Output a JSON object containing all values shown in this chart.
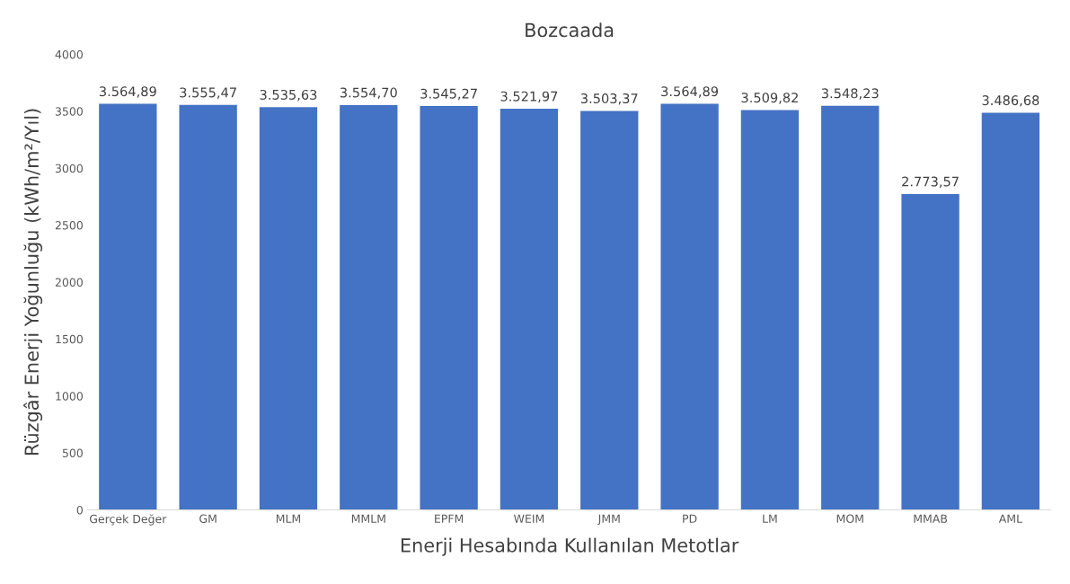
{
  "chart_data": {
    "type": "bar",
    "title": "Bozcaada",
    "xlabel": "Enerji Hesabında Kullanılan Metotlar",
    "ylabel": "Rüzgâr Enerji Yoğunluğu (kWh/m²/Yıl)",
    "categories": [
      "Gerçek Değer",
      "GM",
      "MLM",
      "MMLM",
      "EPFM",
      "WEIM",
      "JMM",
      "PD",
      "LM",
      "MOM",
      "MMAB",
      "AML"
    ],
    "values": [
      3564.89,
      3555.47,
      3535.63,
      3554.7,
      3545.27,
      3521.97,
      3503.37,
      3564.89,
      3509.82,
      3548.23,
      2773.57,
      3486.68
    ],
    "value_labels": [
      "3.564,89",
      "3.555,47",
      "3.535,63",
      "3.554,70",
      "3.545,27",
      "3.521,97",
      "3.503,37",
      "3.564,89",
      "3.509,82",
      "3.548,23",
      "2.773,57",
      "3.486,68"
    ],
    "color": "#4472c4",
    "ylim": [
      0,
      4000
    ],
    "yticks": [
      0,
      500,
      1000,
      1500,
      2000,
      2500,
      3000,
      3500,
      4000
    ],
    "grid": false,
    "legend": false
  }
}
